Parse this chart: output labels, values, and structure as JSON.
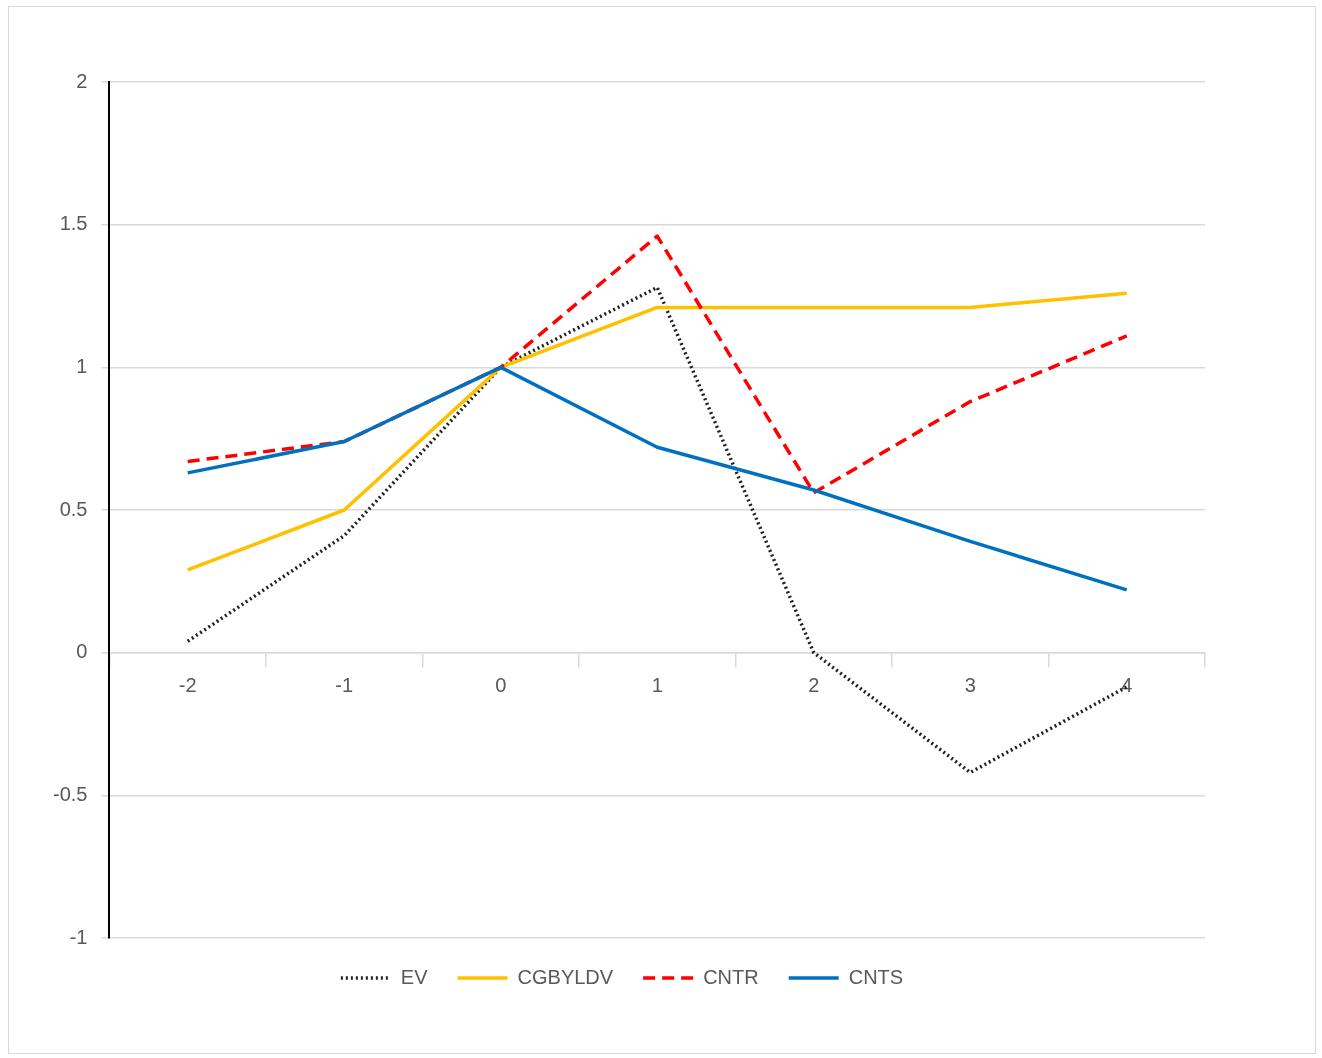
{
  "chart_data": {
    "type": "line",
    "categories": [
      "-2",
      "-1",
      "0",
      "1",
      "2",
      "3",
      "4"
    ],
    "series": [
      {
        "name": "EV",
        "color": "#222222",
        "line_style": "dotted",
        "values": [
          0.04,
          0.41,
          1.0,
          1.28,
          0.0,
          -0.42,
          -0.12
        ]
      },
      {
        "name": "CGBYLDV",
        "color": "#ffc000",
        "line_style": "solid",
        "values": [
          0.29,
          0.5,
          1.0,
          1.21,
          1.21,
          1.21,
          1.26
        ]
      },
      {
        "name": "CNTR",
        "color": "#ff0000",
        "line_style": "dashed",
        "values": [
          0.67,
          0.74,
          1.0,
          1.46,
          0.56,
          0.88,
          1.11
        ]
      },
      {
        "name": "CNTS",
        "color": "#0070c0",
        "line_style": "solid",
        "values": [
          0.63,
          0.74,
          1.0,
          0.72,
          0.57,
          0.39,
          0.22
        ]
      }
    ],
    "ylim": [
      -1,
      2
    ],
    "yticks": [
      -1,
      -0.5,
      0,
      0.5,
      1,
      1.5,
      2
    ],
    "grid": "y",
    "legend": "bottom",
    "marker": "none"
  }
}
